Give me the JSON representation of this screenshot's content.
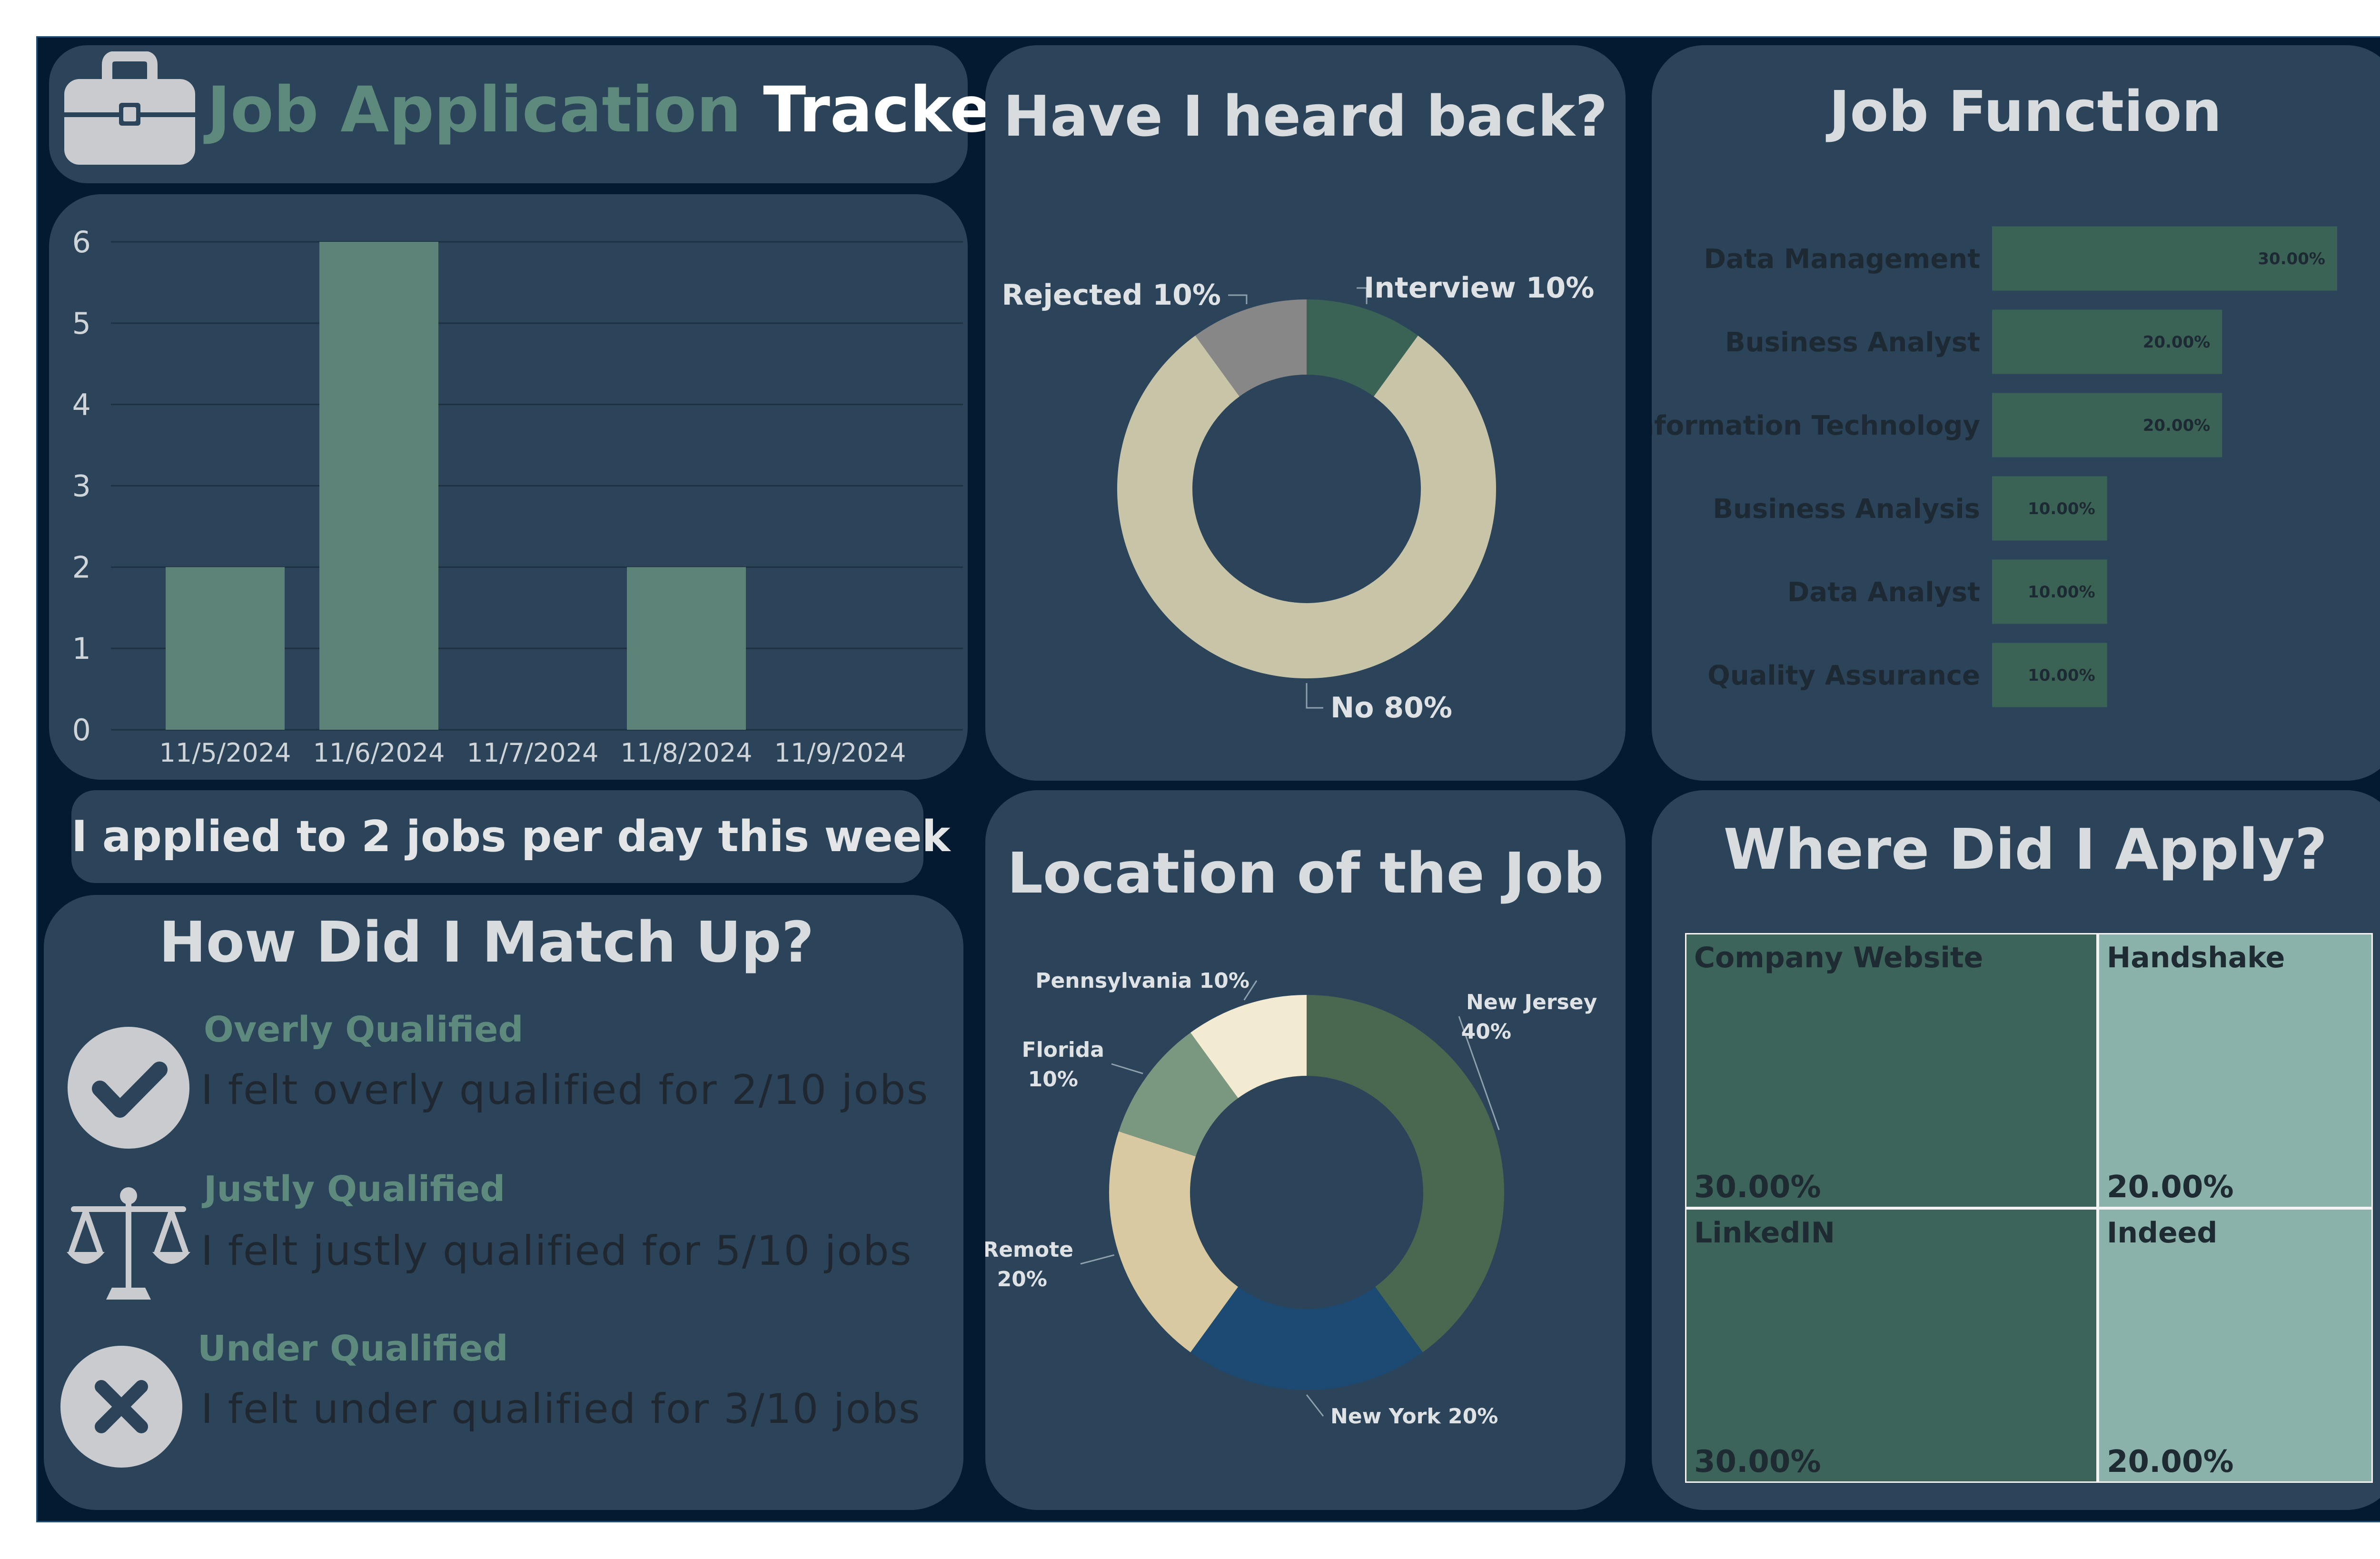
{
  "header": {
    "title_part1": "Job Application",
    "title_part2": "Tracker",
    "icon": "briefcase-icon"
  },
  "daily": {
    "summary": "I applied to 2 jobs per day this week",
    "chart_data": {
      "type": "bar",
      "categories": [
        "11/5/2024",
        "11/6/2024",
        "11/7/2024",
        "11/8/2024",
        "11/9/2024"
      ],
      "values": [
        2,
        6,
        0,
        2,
        0
      ],
      "ylim": [
        0,
        6
      ],
      "yticks": [
        "0",
        "1",
        "2",
        "3",
        "4",
        "5",
        "6"
      ],
      "grid": true,
      "color": "#5d8378"
    }
  },
  "heard_back": {
    "title": "Have I heard back?",
    "chart_data": {
      "type": "pie",
      "donut": true,
      "slices": [
        {
          "label": "Interview",
          "value": 10,
          "text": "Interview 10%",
          "color": "#3a6356"
        },
        {
          "label": "No",
          "value": 80,
          "text": "No 80%",
          "color": "#c8c4a8"
        },
        {
          "label": "Rejected",
          "value": 10,
          "text": "Rejected 10%",
          "color": "#878787"
        }
      ]
    }
  },
  "job_function": {
    "title": "Job Function",
    "chart_data": {
      "type": "bar",
      "orientation": "horizontal",
      "categories": [
        "Data Management",
        "Business Analyst",
        "Information Technology",
        "Business Analysis",
        "Data Analyst",
        "Quality Assurance"
      ],
      "values": [
        30,
        20,
        20,
        10,
        10,
        10
      ],
      "value_labels": [
        "30.00%",
        "20.00%",
        "20.00%",
        "10.00%",
        "10.00%",
        "10.00%"
      ],
      "xlim": [
        0,
        30
      ],
      "color": "#3a6356"
    }
  },
  "match": {
    "title": "How Did I Match Up?",
    "items": [
      {
        "heading": "Overly Qualified",
        "text": "I felt overly qualified for 2/10 jobs",
        "icon": "checkmark-icon"
      },
      {
        "heading": "Justly Qualified",
        "text": "I felt justly qualified for 5/10 jobs",
        "icon": "scales-icon"
      },
      {
        "heading": "Under Qualified",
        "text": "I felt under qualified for 3/10 jobs",
        "icon": "x-icon"
      }
    ]
  },
  "location": {
    "title": "Location of the Job",
    "chart_data": {
      "type": "pie",
      "donut": true,
      "slices": [
        {
          "label": "New Jersey",
          "value": 40,
          "text_lines": [
            "New Jersey",
            "40%"
          ],
          "color": "#4a6850"
        },
        {
          "label": "New York",
          "value": 20,
          "text_lines": [
            "New York 20%"
          ],
          "color": "#1c4a72"
        },
        {
          "label": "Remote",
          "value": 20,
          "text_lines": [
            "Remote",
            "20%"
          ],
          "color": "#d9c9a0"
        },
        {
          "label": "Florida",
          "value": 10,
          "text_lines": [
            "Florida",
            "10%"
          ],
          "color": "#7a9880"
        },
        {
          "label": "Pennsylvania",
          "value": 10,
          "text_lines": [
            "Pennsylvania 10%"
          ],
          "color": "#f3ead2"
        }
      ]
    }
  },
  "where": {
    "title": "Where Did I Apply?",
    "chart_data": {
      "type": "treemap",
      "cells": [
        {
          "name": "Company Website",
          "value": 30,
          "text": "30.00%",
          "color": "#3c645a"
        },
        {
          "name": "Handshake",
          "value": 20,
          "text": "20.00%",
          "color": "#8ab2ab"
        },
        {
          "name": "LinkedIN",
          "value": 30,
          "text": "30.00%",
          "color": "#3c645a"
        },
        {
          "name": "Indeed",
          "value": 20,
          "text": "20.00%",
          "color": "#8ab2ab"
        }
      ]
    }
  }
}
